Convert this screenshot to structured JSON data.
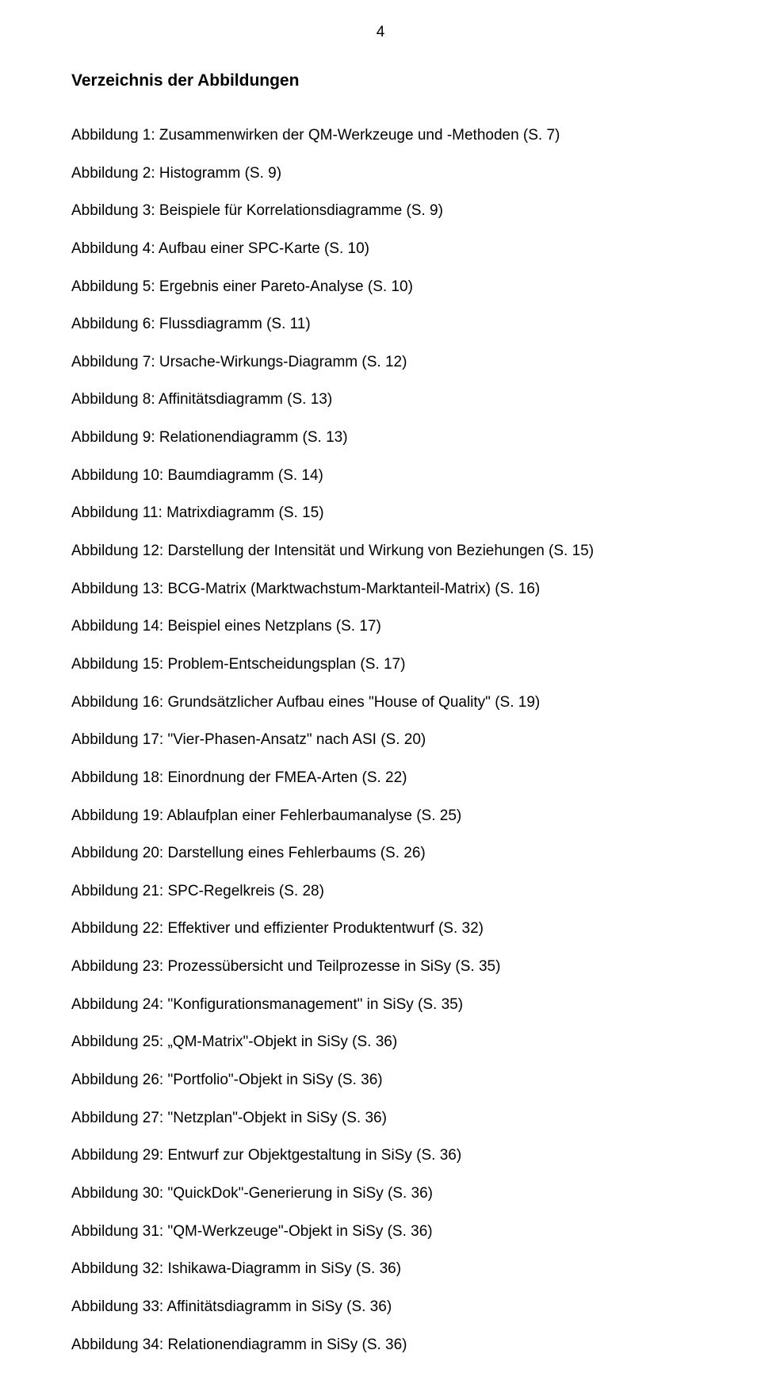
{
  "page_number": "4",
  "heading": "Verzeichnis der Abbildungen",
  "entries": [
    "Abbildung 1: Zusammenwirken der QM-Werkzeuge und -Methoden (S. 7)",
    "Abbildung 2: Histogramm (S. 9)",
    "Abbildung 3: Beispiele für Korrelationsdiagramme (S. 9)",
    "Abbildung 4: Aufbau einer SPC-Karte (S. 10)",
    "Abbildung 5: Ergebnis einer Pareto-Analyse (S. 10)",
    "Abbildung 6: Flussdiagramm (S. 11)",
    "Abbildung 7: Ursache-Wirkungs-Diagramm (S. 12)",
    "Abbildung 8: Affinitätsdiagramm (S. 13)",
    "Abbildung 9: Relationendiagramm (S. 13)",
    "Abbildung 10: Baumdiagramm (S. 14)",
    "Abbildung 11: Matrixdiagramm (S. 15)",
    "Abbildung 12: Darstellung der Intensität und Wirkung von Beziehungen (S. 15)",
    "Abbildung 13: BCG-Matrix (Marktwachstum-Marktanteil-Matrix) (S. 16)",
    "Abbildung 14: Beispiel eines Netzplans (S. 17)",
    "Abbildung 15: Problem-Entscheidungsplan (S. 17)",
    "Abbildung 16: Grundsätzlicher Aufbau eines \"House of Quality\" (S. 19)",
    "Abbildung 17: \"Vier-Phasen-Ansatz\" nach ASI (S. 20)",
    "Abbildung 18: Einordnung der FMEA-Arten (S. 22)",
    "Abbildung 19: Ablaufplan einer Fehlerbaumanalyse (S. 25)",
    "Abbildung 20: Darstellung eines Fehlerbaums (S. 26)",
    "Abbildung 21: SPC-Regelkreis (S. 28)",
    "Abbildung 22: Effektiver und effizienter Produktentwurf (S. 32)",
    "Abbildung 23: Prozessübersicht und Teilprozesse in SiSy (S. 35)",
    "Abbildung 24: \"Konfigurationsmanagement\" in SiSy (S. 35)",
    "Abbildung 25: „QM-Matrix\"-Objekt in SiSy (S. 36)",
    "Abbildung 26: \"Portfolio\"-Objekt in SiSy (S. 36)",
    "Abbildung 27: \"Netzplan\"-Objekt in SiSy (S. 36)",
    "Abbildung 29: Entwurf zur Objektgestaltung in SiSy (S. 36)",
    "Abbildung 30: \"QuickDok\"-Generierung in SiSy (S. 36)",
    "Abbildung 31: \"QM-Werkzeuge\"-Objekt in SiSy (S. 36)",
    "Abbildung 32: Ishikawa-Diagramm in SiSy (S. 36)",
    "Abbildung 33: Affinitätsdiagramm in SiSy (S. 36)",
    "Abbildung 34: Relationendiagramm in SiSy (S. 36)"
  ]
}
